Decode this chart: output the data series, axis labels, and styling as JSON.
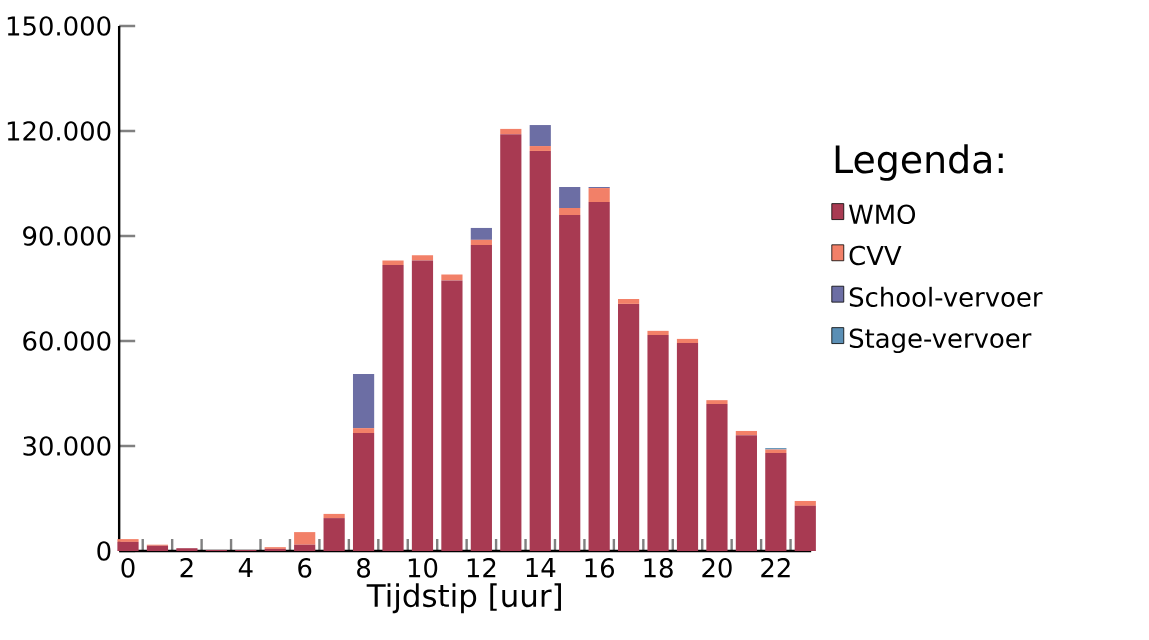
{
  "chart_data": {
    "type": "bar",
    "stacked": true,
    "xlabel": "Tijdstip [uur]",
    "legend_title": "Legenda:",
    "legend": "right",
    "categories": [
      "0",
      null,
      "2",
      null,
      "4",
      null,
      "6",
      null,
      "8",
      null,
      "10",
      null,
      "12",
      null,
      "14",
      null,
      "16",
      null,
      "18",
      null,
      "20",
      null,
      "22",
      null
    ],
    "series": [
      {
        "name": "WMO",
        "color": "#a83a52",
        "values": [
          2600,
          1500,
          800,
          300,
          300,
          600,
          1800,
          9400,
          33700,
          81700,
          83000,
          77300,
          87400,
          119100,
          114300,
          96000,
          99700,
          70600,
          61700,
          59400,
          42000,
          33100,
          28000,
          12900
        ]
      },
      {
        "name": "CVV",
        "color": "#f28068",
        "values": [
          800,
          300,
          0,
          0,
          0,
          500,
          3600,
          1200,
          1400,
          1300,
          1500,
          1700,
          1500,
          1500,
          1400,
          2000,
          4000,
          1400,
          1200,
          1200,
          1100,
          1200,
          1000,
          1400
        ]
      },
      {
        "name": "School-vervoer",
        "color": "#6c6ea4",
        "values": [
          0,
          0,
          0,
          0,
          0,
          0,
          0,
          0,
          15500,
          0,
          0,
          0,
          3400,
          0,
          6000,
          6000,
          300,
          0,
          0,
          0,
          0,
          0,
          0,
          0
        ]
      },
      {
        "name": "Stage-vervoer",
        "color": "#5b8fb5",
        "values": [
          0,
          0,
          0,
          0,
          0,
          0,
          0,
          0,
          0,
          0,
          0,
          0,
          0,
          0,
          0,
          0,
          0,
          0,
          0,
          0,
          0,
          0,
          400,
          0
        ]
      }
    ],
    "ylim": [
      0,
      150000
    ],
    "yticks": [
      {
        "value": 0,
        "label": "0"
      },
      {
        "value": 30000,
        "label": "30.000"
      },
      {
        "value": 60000,
        "label": "60.000"
      },
      {
        "value": 90000,
        "label": "90.000"
      },
      {
        "value": 120000,
        "label": "120.000"
      },
      {
        "value": 150000,
        "label": "150.000"
      }
    ]
  }
}
